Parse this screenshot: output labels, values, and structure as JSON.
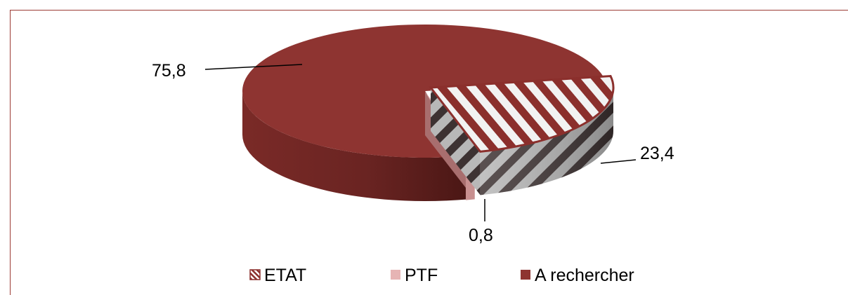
{
  "chart_data": {
    "type": "pie",
    "categories": [
      "ETAT",
      "PTF",
      "A rechercher"
    ],
    "values": [
      23.4,
      0.8,
      75.8
    ],
    "data_labels": [
      "23,4",
      "0,8",
      "75,8"
    ],
    "legend": [
      "ETAT",
      "PTF",
      "A rechercher"
    ],
    "legend_position": "bottom",
    "colors": {
      "ETAT": "#8b2f2c",
      "PTF": "#e6b4b4",
      "A rechercher": "#8e3431"
    },
    "style": "3d-exploded"
  }
}
